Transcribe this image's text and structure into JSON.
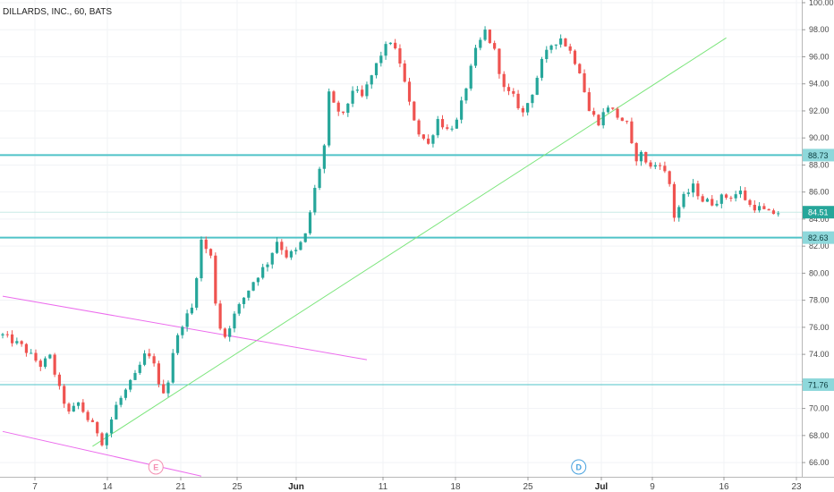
{
  "header": {
    "title": "DILLARDS, INC., 60, BATS"
  },
  "colors": {
    "up": "#26a69a",
    "down": "#ef5350",
    "hline": "#4fc3c8",
    "trend": "#7be57b",
    "channel": "#ec6ced",
    "last_price": "#26a69a",
    "earnings": "#f48fb1",
    "dividend": "#4aa3df"
  },
  "chart_data": {
    "type": "candlestick",
    "title": "DILLARDS, INC., 60, BATS",
    "y_ticks": [
      "100.00",
      "98.00",
      "96.00",
      "94.00",
      "92.00",
      "90.00",
      "88.00",
      "86.00",
      "84.00",
      "82.00",
      "80.00",
      "78.00",
      "76.00",
      "74.00",
      "72.00",
      "70.00",
      "68.00",
      "66.00"
    ],
    "ylim": [
      65,
      100.3
    ],
    "x_tick_labels": [
      {
        "label": "7",
        "bold": false
      },
      {
        "label": "14",
        "bold": false
      },
      {
        "label": "21",
        "bold": false
      },
      {
        "label": "25",
        "bold": false
      },
      {
        "label": "Jun",
        "bold": true
      },
      {
        "label": "11",
        "bold": false
      },
      {
        "label": "18",
        "bold": false
      },
      {
        "label": "25",
        "bold": false
      },
      {
        "label": "Jul",
        "bold": true
      },
      {
        "label": "9",
        "bold": false
      },
      {
        "label": "16",
        "bold": false
      },
      {
        "label": "23",
        "bold": false
      }
    ],
    "price_path": [
      [
        0,
        75.4
      ],
      [
        2,
        74.6
      ],
      [
        4,
        73.2
      ],
      [
        5,
        73.8
      ],
      [
        6,
        71.4
      ],
      [
        7,
        69.6
      ],
      [
        8,
        70.4
      ],
      [
        9,
        69.2
      ],
      [
        10,
        68.3
      ],
      [
        10.6,
        67.4
      ],
      [
        12,
        70.2
      ],
      [
        14,
        72.4
      ],
      [
        15,
        73.9
      ],
      [
        16,
        73.5
      ],
      [
        16.5,
        71.6
      ],
      [
        17.3,
        71.2
      ],
      [
        18,
        74.2
      ],
      [
        19,
        76.3
      ],
      [
        20,
        77.4
      ],
      [
        21,
        82.4
      ],
      [
        22,
        81.2
      ],
      [
        22.7,
        76.6
      ],
      [
        23.4,
        75.2
      ],
      [
        24.5,
        76.9
      ],
      [
        25.5,
        78.2
      ],
      [
        26.5,
        79.4
      ],
      [
        28,
        80.8
      ],
      [
        29,
        82.4
      ],
      [
        30,
        81.3
      ],
      [
        31,
        81.6
      ],
      [
        32,
        82.8
      ],
      [
        33,
        86.2
      ],
      [
        34,
        89.4
      ],
      [
        34.5,
        93.2
      ],
      [
        35,
        92.4
      ],
      [
        36,
        91.6
      ],
      [
        37,
        93.6
      ],
      [
        38,
        93.0
      ],
      [
        39,
        94.6
      ],
      [
        40,
        96.2
      ],
      [
        41,
        97.2
      ],
      [
        42,
        95.6
      ],
      [
        43,
        92.5
      ],
      [
        44,
        90.4
      ],
      [
        45,
        89.5
      ],
      [
        46,
        91.4
      ],
      [
        47,
        90.6
      ],
      [
        48,
        91.2
      ],
      [
        49,
        93.8
      ],
      [
        50,
        96.4
      ],
      [
        51,
        97.9
      ],
      [
        52,
        96.4
      ],
      [
        53,
        93.6
      ],
      [
        54,
        93.0
      ],
      [
        55,
        91.8
      ],
      [
        56,
        93.4
      ],
      [
        57,
        95.6
      ],
      [
        58,
        96.9
      ],
      [
        59,
        97.4
      ],
      [
        60,
        96.4
      ],
      [
        61,
        95.0
      ],
      [
        62,
        92.0
      ],
      [
        63,
        91.2
      ],
      [
        64,
        92.4
      ],
      [
        65,
        91.6
      ],
      [
        66,
        91.0
      ],
      [
        66.8,
        88.4
      ],
      [
        67.5,
        88.8
      ],
      [
        68.5,
        87.8
      ],
      [
        69.5,
        88.2
      ],
      [
        70.5,
        86.6
      ],
      [
        71,
        84.2
      ],
      [
        72,
        85.6
      ],
      [
        73,
        86.4
      ],
      [
        74,
        85.4
      ],
      [
        75,
        85.2
      ],
      [
        76,
        85.6
      ],
      [
        77,
        85.7
      ],
      [
        78,
        86.0
      ],
      [
        79,
        85.0
      ],
      [
        80,
        84.8
      ],
      [
        81,
        84.4
      ],
      [
        82,
        84.5
      ]
    ],
    "horizontal_lines": [
      {
        "value": 88.73,
        "label": "88.73",
        "style": "thick"
      },
      {
        "value": 82.63,
        "label": "82.63",
        "style": "thick"
      },
      {
        "value": 71.76,
        "label": "71.76",
        "style": "thin"
      }
    ],
    "last_price": {
      "value": 84.51,
      "label": "84.51"
    },
    "trend_lines": [
      {
        "name": "uptrend",
        "x1": 9.5,
        "y1": 67.2,
        "x2": 76.5,
        "y2": 97.4
      },
      {
        "name": "channel-upper",
        "x1": 0,
        "y1": 78.3,
        "x2": 38.5,
        "y2": 73.6
      },
      {
        "name": "channel-lower",
        "x1": 0,
        "y1": 68.3,
        "x2": 21,
        "y2": 65.0
      }
    ],
    "event_markers": [
      {
        "label": "E",
        "x": 16.2,
        "kind": "earnings"
      },
      {
        "label": "D",
        "x": 60.9,
        "kind": "dividend"
      }
    ]
  }
}
